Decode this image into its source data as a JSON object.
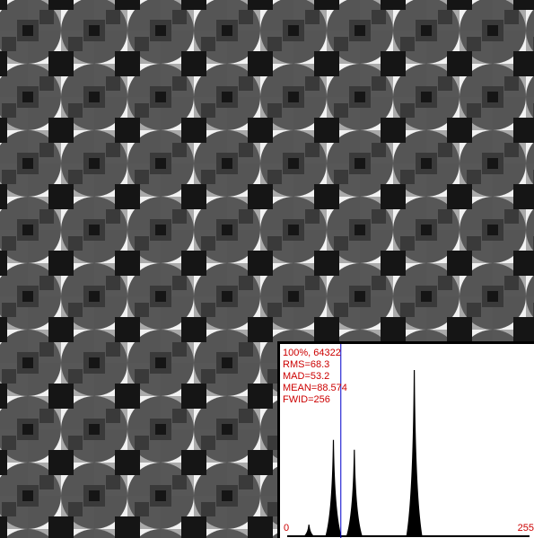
{
  "image_viewer": {
    "pattern": {
      "tile_colors": {
        "white": "#f2f2f2",
        "light_gray": "#aaaaaa",
        "dark_gray": "#3a3a3a",
        "black": "#151515",
        "arc_gray": "#555555"
      }
    },
    "histogram": {
      "stats": {
        "percent_count": "100%, 64322",
        "rms": "RMS=68.3",
        "mad": "MAD=53.2",
        "mean": "MEAN=88.574",
        "fwid": "FWID=256"
      },
      "axis": {
        "min_label": "0",
        "max_label": "255"
      },
      "colors": {
        "text": "#cc0000",
        "bars": "#000000",
        "mean_line": "#0000cc",
        "background": "#ffffff"
      }
    }
  },
  "chart_data": {
    "type": "bar",
    "xlim": [
      0,
      255
    ],
    "mean": 88.574,
    "peaks": [
      {
        "x": 18,
        "value": 0.07
      },
      {
        "x": 45,
        "value": 0.58
      },
      {
        "x": 68,
        "value": 0.52
      },
      {
        "x": 134,
        "value": 1.0
      }
    ],
    "xlabel": "",
    "ylabel": ""
  }
}
